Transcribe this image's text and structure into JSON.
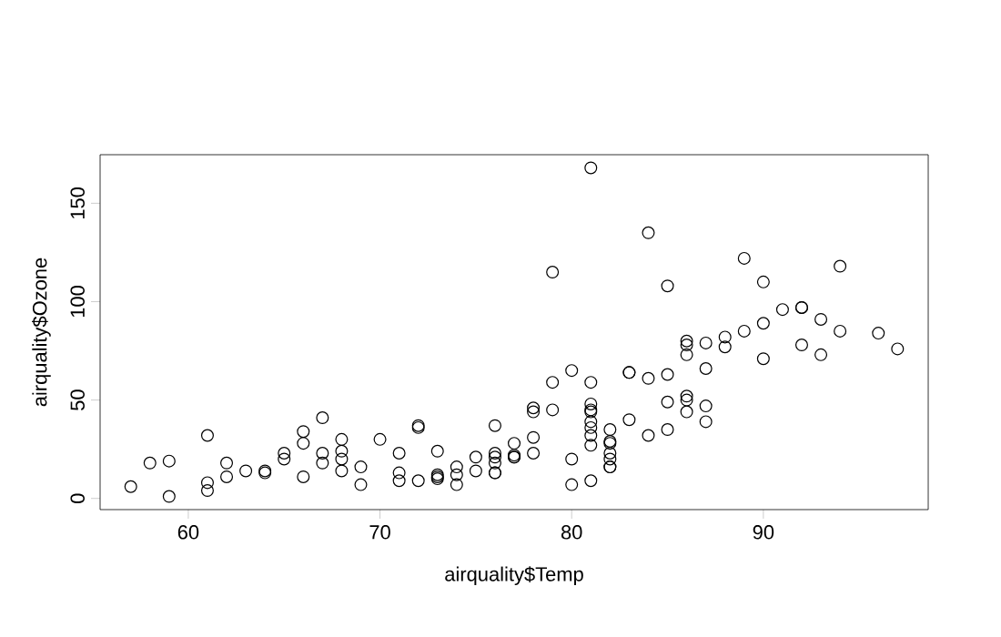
{
  "chart_data": {
    "type": "scatter",
    "xlabel": "airquality$Temp",
    "ylabel": "airquality$Ozone",
    "x": [
      67,
      72,
      74,
      62,
      66,
      65,
      59,
      61,
      74,
      69,
      66,
      68,
      58,
      64,
      66,
      57,
      68,
      62,
      59,
      73,
      61,
      61,
      67,
      81,
      79,
      76,
      82,
      90,
      87,
      82,
      77,
      72,
      65,
      73,
      76,
      84,
      85,
      81,
      83,
      83,
      88,
      92,
      92,
      89,
      73,
      81,
      80,
      81,
      82,
      84,
      87,
      85,
      74,
      86,
      85,
      82,
      86,
      88,
      86,
      83,
      81,
      81,
      81,
      82,
      86,
      85,
      87,
      89,
      90,
      90,
      86,
      82,
      80,
      77,
      79,
      76,
      78,
      78,
      77,
      72,
      79,
      81,
      86,
      97,
      94,
      96,
      94,
      91,
      92,
      93,
      93,
      87,
      84,
      80,
      78,
      75,
      73,
      81,
      76,
      77,
      71,
      71,
      78,
      67,
      76,
      68,
      82,
      64,
      71,
      81,
      69,
      63,
      70,
      75,
      76,
      68
    ],
    "values": [
      41,
      36,
      12,
      18,
      28,
      23,
      19,
      8,
      7,
      16,
      11,
      14,
      18,
      14,
      34,
      6,
      30,
      11,
      1,
      11,
      4,
      32,
      23,
      45,
      115,
      37,
      29,
      71,
      39,
      23,
      21,
      37,
      20,
      12,
      13,
      135,
      49,
      32,
      64,
      40,
      77,
      97,
      97,
      85,
      10,
      27,
      7,
      48,
      35,
      61,
      79,
      63,
      16,
      80,
      108,
      20,
      52,
      82,
      50,
      64,
      59,
      39,
      9,
      16,
      78,
      35,
      66,
      122,
      89,
      110,
      44,
      28,
      65,
      22,
      59,
      23,
      31,
      44,
      21,
      9,
      45,
      168,
      73,
      76,
      118,
      84,
      85,
      96,
      78,
      73,
      91,
      47,
      32,
      20,
      23,
      21,
      24,
      44,
      21,
      28,
      9,
      13,
      46,
      18,
      13,
      24,
      16,
      13,
      23,
      36,
      7,
      14,
      30,
      14,
      18,
      20
    ],
    "color": "#000000",
    "marker": "circle",
    "xlim": [
      55.4,
      98.6
    ],
    "ylim": [
      -5.68,
      174.68
    ],
    "xticks": [
      60,
      70,
      80,
      90
    ],
    "yticks": [
      0,
      50,
      100,
      150
    ]
  }
}
